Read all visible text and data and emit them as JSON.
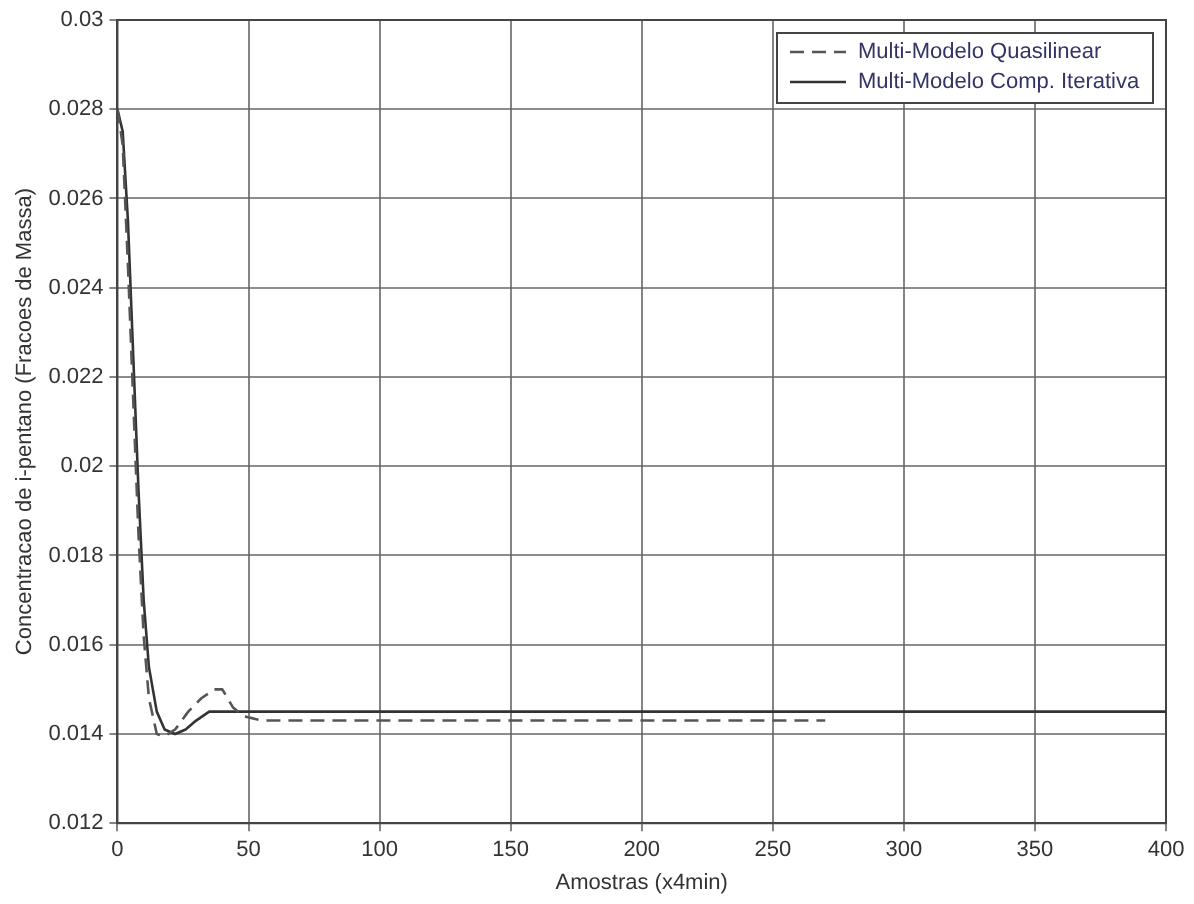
{
  "chart_data": {
    "type": "line",
    "xlabel": "Amostras (x4min)",
    "ylabel": "Concentracao de i-pentano (Fracoes de Massa)",
    "xlim": [
      0,
      400
    ],
    "xticks": [
      0,
      50,
      100,
      150,
      200,
      250,
      300,
      350,
      400
    ],
    "ylim": [
      0.012,
      0.03
    ],
    "yticks": [
      0.012,
      0.014,
      0.016,
      0.018,
      0.02,
      0.022,
      0.024,
      0.026,
      0.028,
      0.03
    ],
    "grid": true,
    "legend": "top right",
    "marker": "none",
    "series": [
      {
        "name": "Multi-Modelo Quasilinear",
        "color": "#555555",
        "line_style": "dashed",
        "x": [
          0,
          2,
          4,
          6,
          8,
          10,
          12,
          15,
          18,
          22,
          27,
          32,
          37,
          40,
          44,
          48,
          55,
          70,
          100,
          150,
          200,
          250,
          270
        ],
        "values": [
          0.028,
          0.0272,
          0.0245,
          0.0215,
          0.0185,
          0.0162,
          0.0148,
          0.014,
          0.01395,
          0.0141,
          0.0145,
          0.0148,
          0.015,
          0.015,
          0.0146,
          0.0144,
          0.0143,
          0.0143,
          0.0143,
          0.0143,
          0.0143,
          0.0143,
          0.0143
        ]
      },
      {
        "name": "Multi-Modelo Comp. Iterativa",
        "color": "#333333",
        "line_style": "solid",
        "x": [
          0,
          2,
          4,
          6,
          8,
          10,
          12,
          15,
          18,
          22,
          26,
          30,
          35,
          40,
          50,
          100,
          200,
          300,
          400
        ],
        "values": [
          0.028,
          0.0275,
          0.0255,
          0.0225,
          0.0195,
          0.017,
          0.0155,
          0.0145,
          0.0141,
          0.014,
          0.0141,
          0.0143,
          0.0145,
          0.0145,
          0.0145,
          0.0145,
          0.0145,
          0.0145,
          0.0145
        ]
      }
    ]
  }
}
